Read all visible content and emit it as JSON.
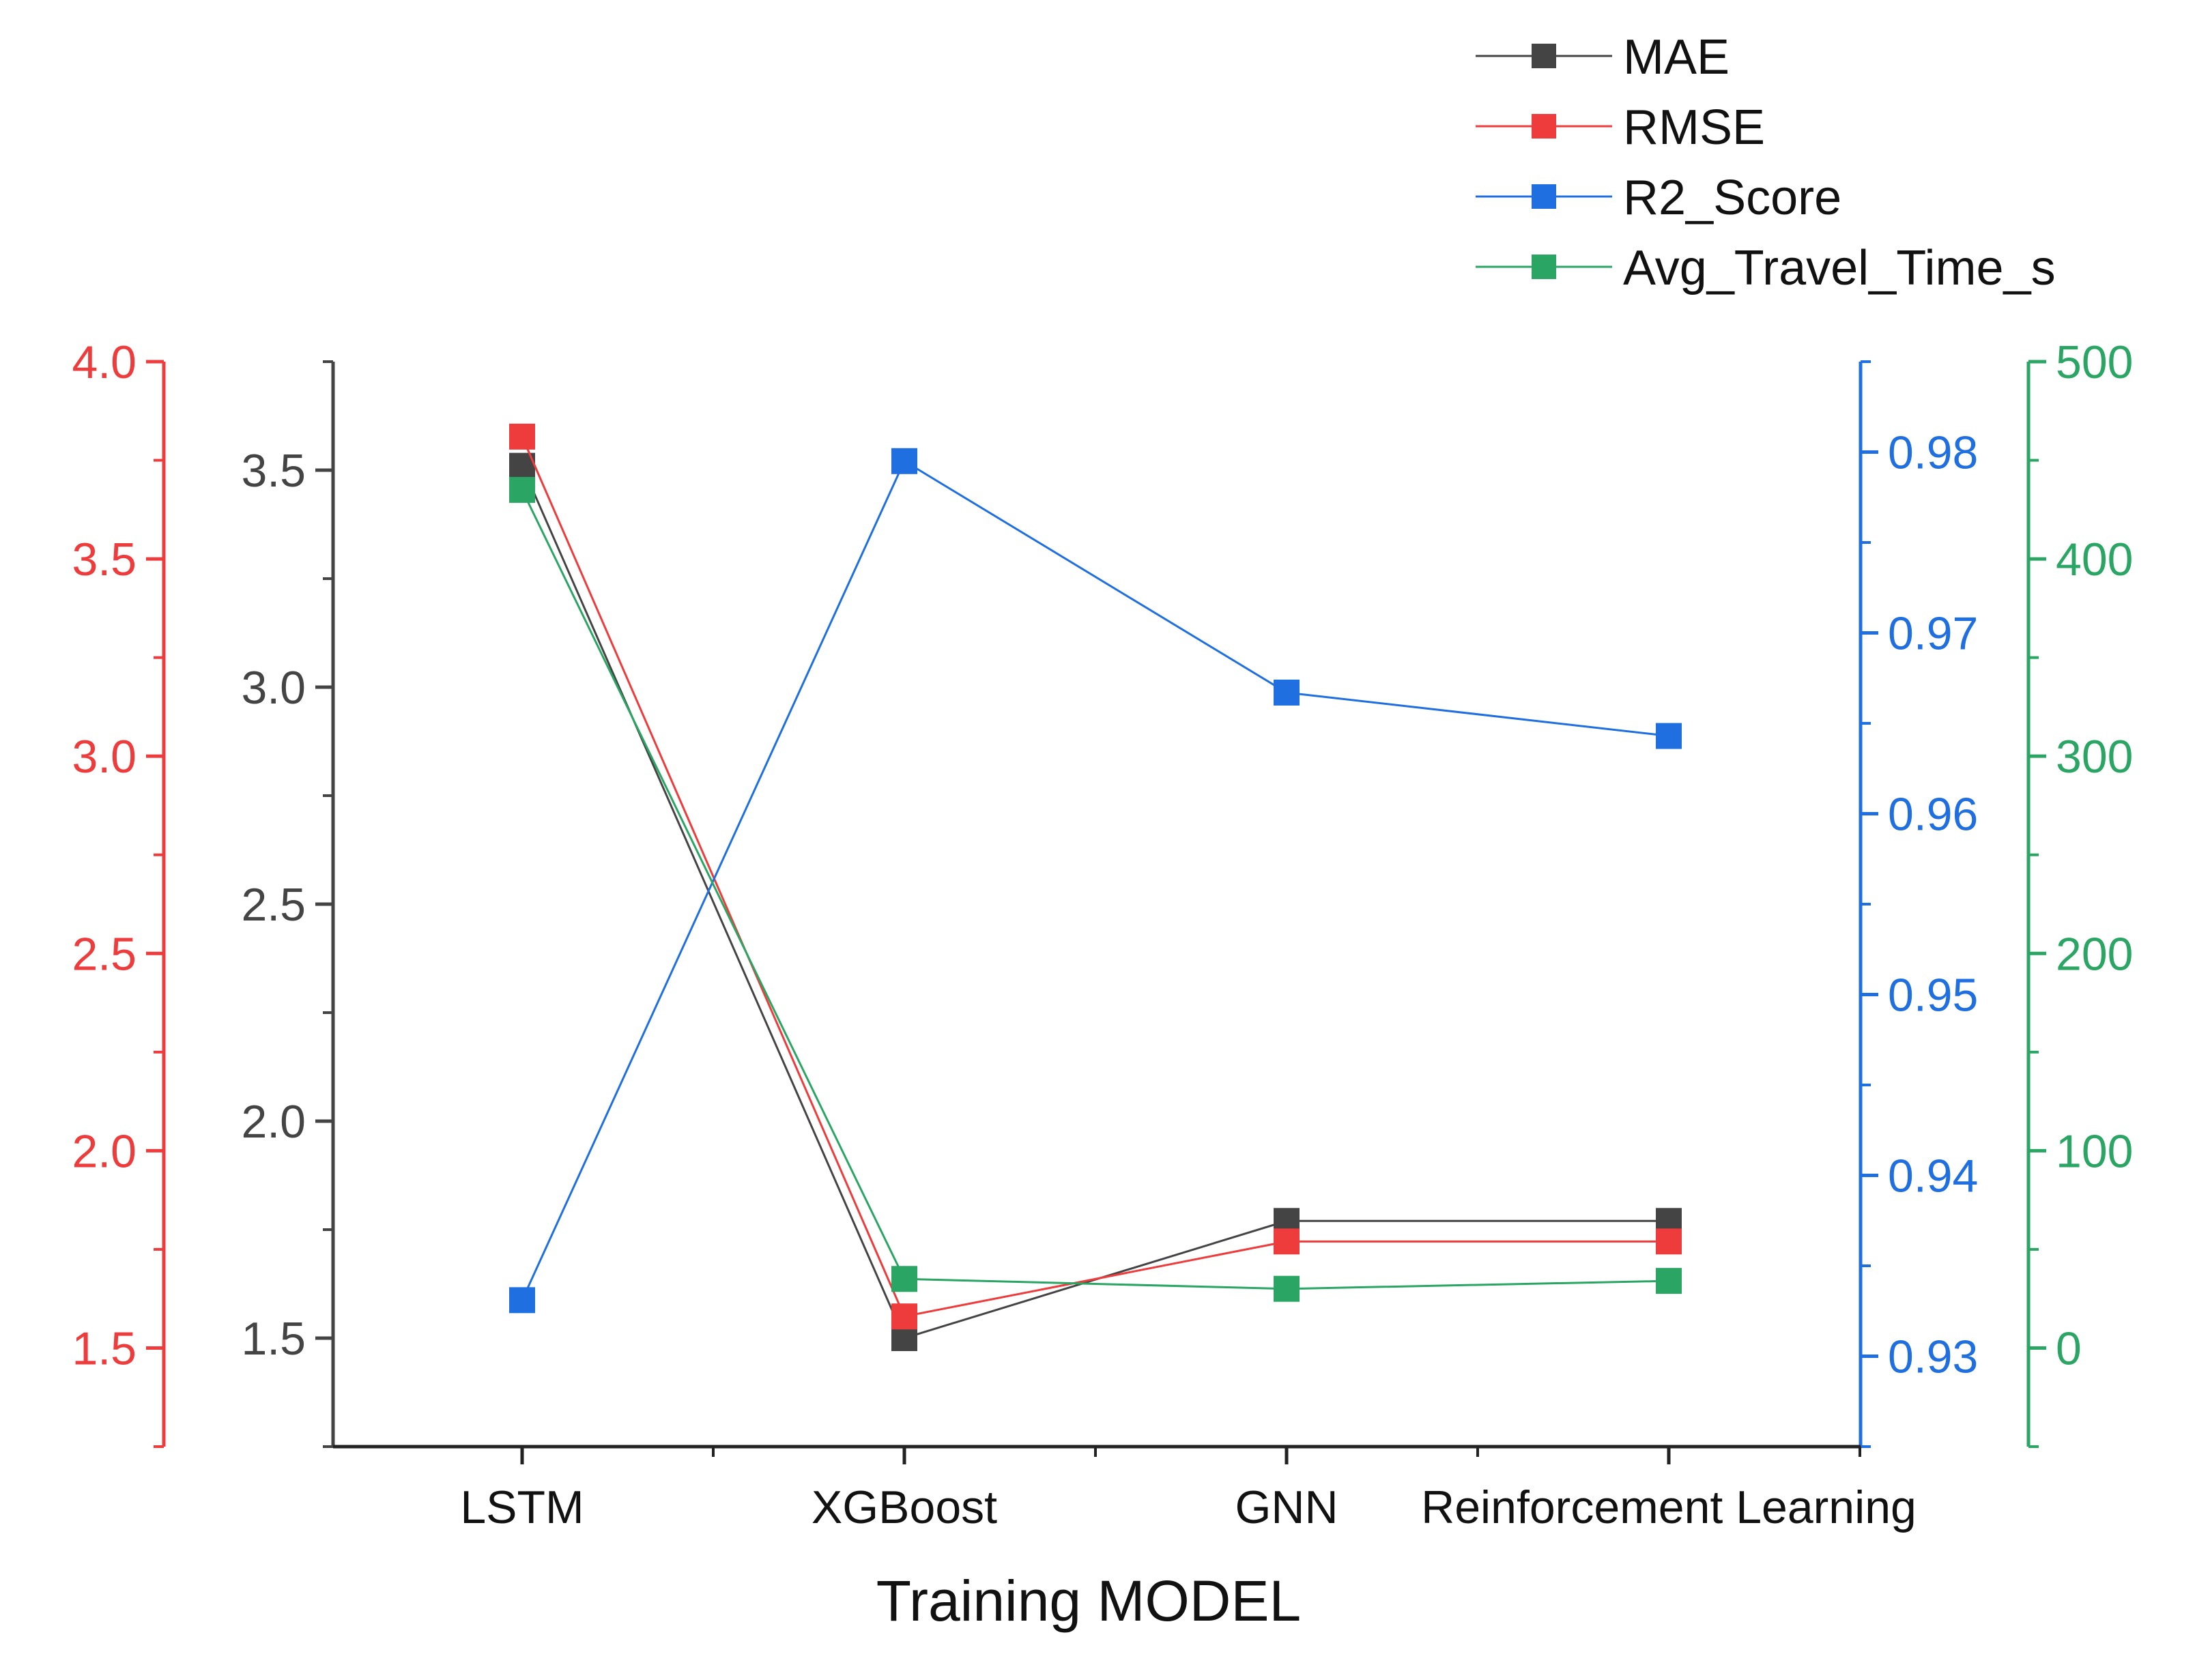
{
  "chart_data": {
    "type": "line",
    "title": "",
    "xlabel": "Training MODEL",
    "categories": [
      "LSTM",
      "XGBoost",
      "GNN",
      "Reinforcement Learning"
    ],
    "legend_position": "top-right",
    "grid": false,
    "series": [
      {
        "name": "MAE",
        "color": "#444444",
        "axis": "mae",
        "values": [
          3.51,
          1.5,
          1.77,
          1.77
        ]
      },
      {
        "name": "RMSE",
        "color": "#ee3b3b",
        "axis": "rmse",
        "values": [
          3.81,
          1.58,
          1.77,
          1.77
        ]
      },
      {
        "name": "R2_Score",
        "color": "#1f6fe0",
        "axis": "r2",
        "values": [
          0.9331,
          0.9795,
          0.9667,
          0.9643
        ]
      },
      {
        "name": "Avg_Travel_Time_s",
        "color": "#2aa564",
        "axis": "travel",
        "values": [
          435,
          35,
          30,
          34
        ]
      }
    ],
    "axes": {
      "mae": {
        "side": "left-inner",
        "color": "#444444",
        "range": [
          1.25,
          3.75
        ],
        "ticks": [
          1.5,
          2.0,
          2.5,
          3.0,
          3.5
        ],
        "tick_labels": [
          "1.5",
          "2.0",
          "2.5",
          "3.0",
          "3.5"
        ]
      },
      "rmse": {
        "side": "left-outer",
        "color": "#ee3b3b",
        "range": [
          1.25,
          4.0
        ],
        "ticks": [
          1.5,
          2.0,
          2.5,
          3.0,
          3.5,
          4.0
        ],
        "tick_labels": [
          "1.5",
          "2.0",
          "2.5",
          "3.0",
          "3.5",
          "4.0"
        ]
      },
      "r2": {
        "side": "right-inner",
        "color": "#1f6fe0",
        "range": [
          0.925,
          0.985
        ],
        "ticks": [
          0.93,
          0.94,
          0.95,
          0.96,
          0.97,
          0.98
        ],
        "tick_labels": [
          "0.93",
          "0.94",
          "0.95",
          "0.96",
          "0.97",
          "0.98"
        ]
      },
      "travel": {
        "side": "right-outer",
        "color": "#2aa564",
        "range": [
          -50,
          500
        ],
        "ticks": [
          0,
          100,
          200,
          300,
          400,
          500
        ],
        "tick_labels": [
          "0",
          "100",
          "200",
          "300",
          "400",
          "500"
        ]
      }
    }
  }
}
